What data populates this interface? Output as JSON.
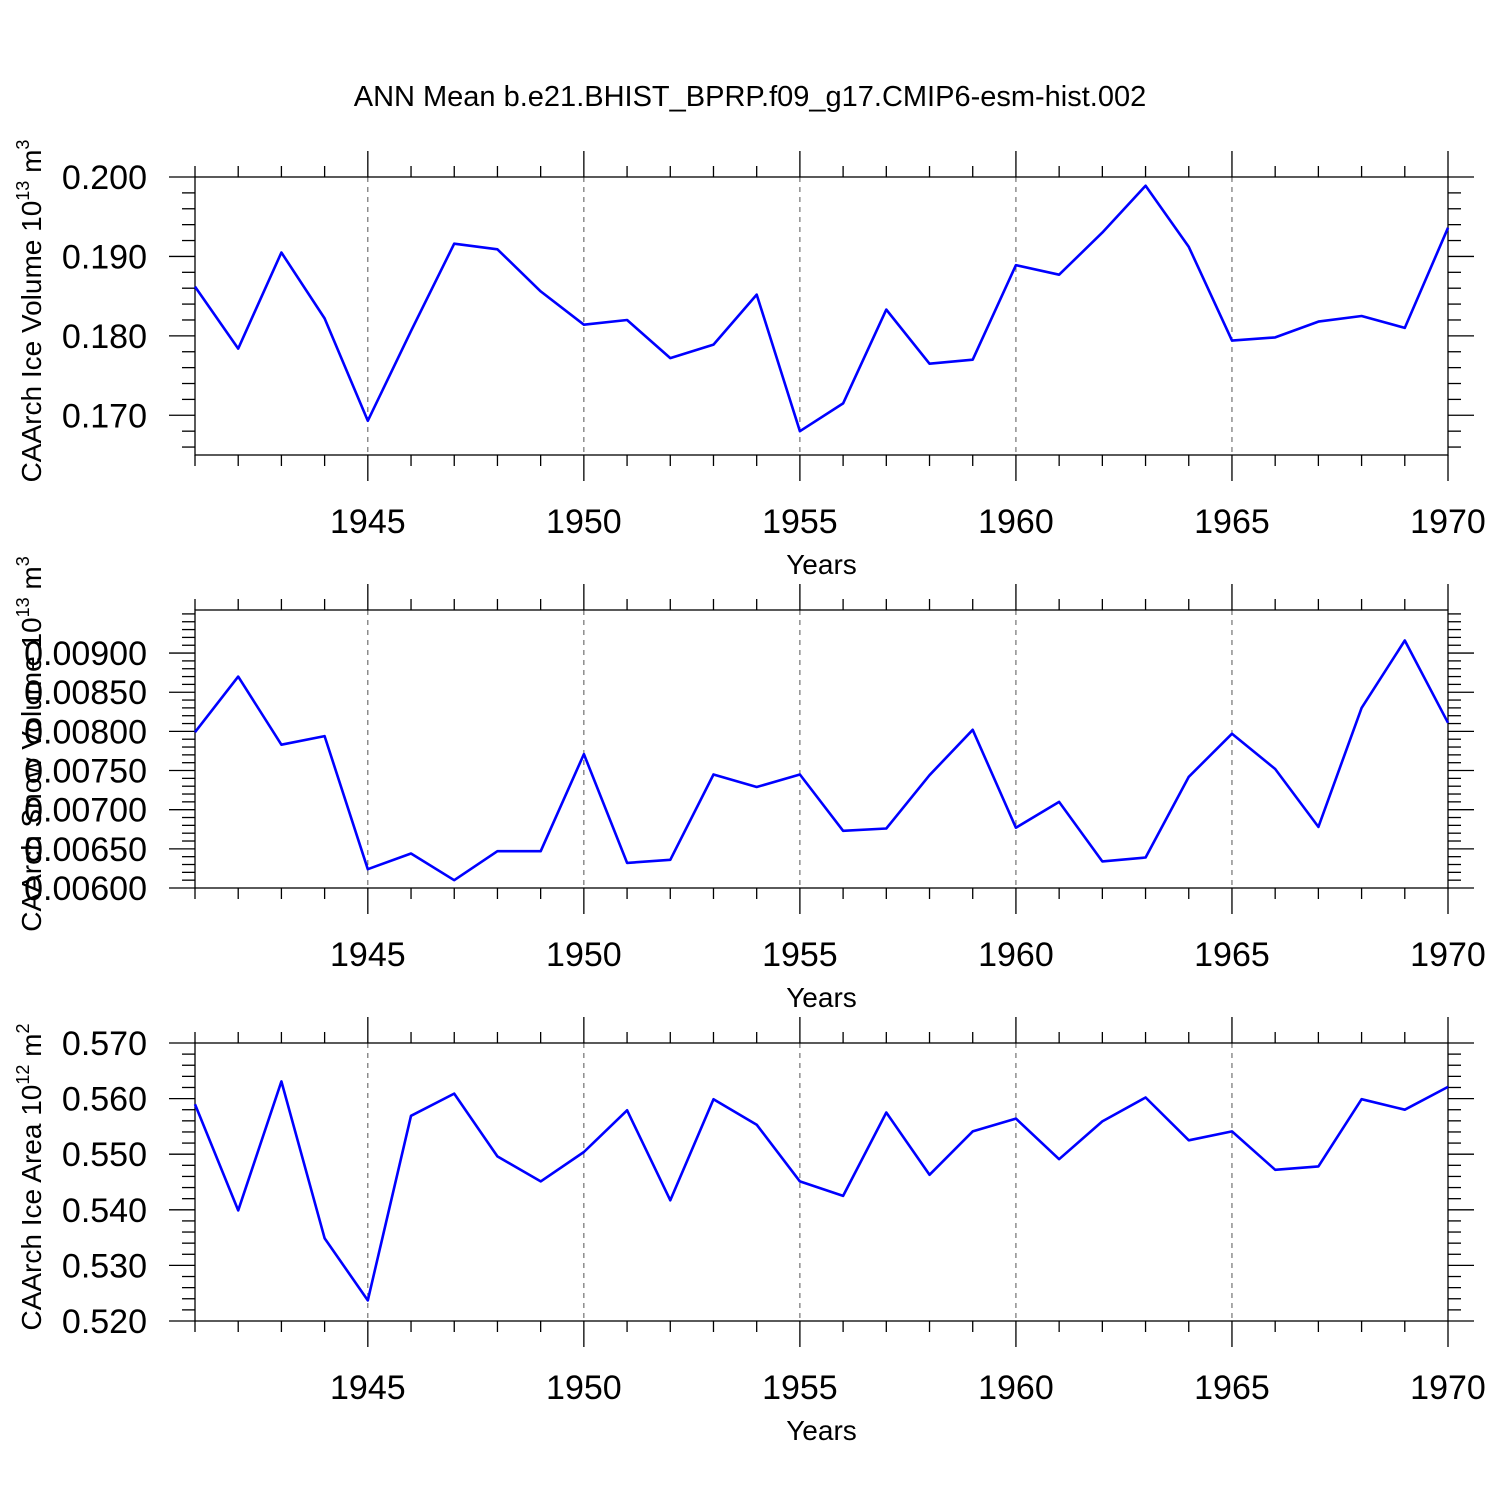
{
  "title": "ANN Mean b.e21.BHIST_BPRP.f09_g17.CMIP6-esm-hist.002",
  "chart_data": [
    {
      "type": "line",
      "title": "ANN Mean b.e21.BHIST_BPRP.f09_g17.CMIP6-esm-hist.002",
      "xlabel": "Years",
      "ylabel": "CAArch Ice Volume 10",
      "ylabel_exp": "13",
      "ylabel_unit": " m",
      "ylabel_unit_exp": "3",
      "xlim": [
        1941,
        1970
      ],
      "ylim": [
        0.165,
        0.2
      ],
      "xticks": [
        1945,
        1950,
        1955,
        1960,
        1965,
        1970
      ],
      "yticks": [
        0.17,
        0.18,
        0.19,
        0.2
      ],
      "ytick_labels": [
        "0.170",
        "0.180",
        "0.190",
        "0.200"
      ],
      "ymajor_step": 0.01,
      "yminor_per_major": 5,
      "grid": "vertical dashed at x ticks",
      "color": "#0000ff",
      "series": [
        {
          "name": "CAArch Ice Volume",
          "x": [
            1941,
            1942,
            1943,
            1944,
            1945,
            1946,
            1947,
            1948,
            1949,
            1950,
            1951,
            1952,
            1953,
            1954,
            1955,
            1956,
            1957,
            1958,
            1959,
            1960,
            1961,
            1962,
            1963,
            1964,
            1965,
            1966,
            1967,
            1968,
            1969,
            1970
          ],
          "values": [
            0.1862,
            0.1784,
            0.1905,
            0.1822,
            0.1693,
            0.1806,
            0.1916,
            0.1909,
            0.1856,
            0.1814,
            0.182,
            0.1772,
            0.1789,
            0.1852,
            0.168,
            0.1715,
            0.1833,
            0.1765,
            0.177,
            0.1889,
            0.1877,
            0.193,
            0.1989,
            0.1912,
            0.1794,
            0.1798,
            0.1818,
            0.1825,
            0.181,
            0.1936
          ]
        }
      ]
    },
    {
      "type": "line",
      "xlabel": "Years",
      "ylabel": "CAArch Snow Volume 10",
      "ylabel_exp": "13",
      "ylabel_unit": " m",
      "ylabel_unit_exp": "3",
      "xlim": [
        1941,
        1970
      ],
      "ylim": [
        0.006,
        0.00955
      ],
      "xticks": [
        1945,
        1950,
        1955,
        1960,
        1965,
        1970
      ],
      "yticks": [
        0.006,
        0.0065,
        0.007,
        0.0075,
        0.008,
        0.0085,
        0.009
      ],
      "ytick_labels": [
        "0.00600",
        "0.00650",
        "0.00700",
        "0.00750",
        "0.00800",
        "0.00850",
        "0.00900"
      ],
      "ymajor_step": 0.0005,
      "yminor_per_major": 5,
      "grid": "vertical dashed at x ticks",
      "color": "#0000ff",
      "series": [
        {
          "name": "CAArch Snow Volume",
          "x": [
            1941,
            1942,
            1943,
            1944,
            1945,
            1946,
            1947,
            1948,
            1949,
            1950,
            1951,
            1952,
            1953,
            1954,
            1955,
            1956,
            1957,
            1958,
            1959,
            1960,
            1961,
            1962,
            1963,
            1964,
            1965,
            1966,
            1967,
            1968,
            1969,
            1970
          ],
          "values": [
            0.00799,
            0.0087,
            0.00783,
            0.00794,
            0.00624,
            0.00644,
            0.0061,
            0.00647,
            0.00647,
            0.00771,
            0.00632,
            0.00636,
            0.00745,
            0.00729,
            0.00745,
            0.00673,
            0.00676,
            0.00744,
            0.00802,
            0.00677,
            0.0071,
            0.00634,
            0.00639,
            0.00742,
            0.00797,
            0.00752,
            0.00678,
            0.0083,
            0.00916,
            0.00811
          ]
        }
      ]
    },
    {
      "type": "line",
      "xlabel": "Years",
      "ylabel": "CAArch Ice Area 10",
      "ylabel_exp": "12",
      "ylabel_unit": " m",
      "ylabel_unit_exp": "2",
      "xlim": [
        1941,
        1970
      ],
      "ylim": [
        0.52,
        0.57
      ],
      "xticks": [
        1945,
        1950,
        1955,
        1960,
        1965,
        1970
      ],
      "yticks": [
        0.52,
        0.53,
        0.54,
        0.55,
        0.56,
        0.57
      ],
      "ytick_labels": [
        "0.520",
        "0.530",
        "0.540",
        "0.550",
        "0.560",
        "0.570"
      ],
      "ymajor_step": 0.01,
      "yminor_per_major": 5,
      "grid": "vertical dashed at x ticks",
      "color": "#0000ff",
      "series": [
        {
          "name": "CAArch Ice Area",
          "x": [
            1941,
            1942,
            1943,
            1944,
            1945,
            1946,
            1947,
            1948,
            1949,
            1950,
            1951,
            1952,
            1953,
            1954,
            1955,
            1956,
            1957,
            1958,
            1959,
            1960,
            1961,
            1962,
            1963,
            1964,
            1965,
            1966,
            1967,
            1968,
            1969,
            1970
          ],
          "values": [
            0.559,
            0.5399,
            0.5631,
            0.5349,
            0.5237,
            0.5569,
            0.5609,
            0.5496,
            0.5451,
            0.5504,
            0.5579,
            0.5417,
            0.5599,
            0.5553,
            0.5451,
            0.5425,
            0.5575,
            0.5463,
            0.5541,
            0.5564,
            0.5491,
            0.5559,
            0.5602,
            0.5525,
            0.5541,
            0.5472,
            0.5478,
            0.5599,
            0.558,
            0.5621
          ]
        }
      ]
    }
  ]
}
